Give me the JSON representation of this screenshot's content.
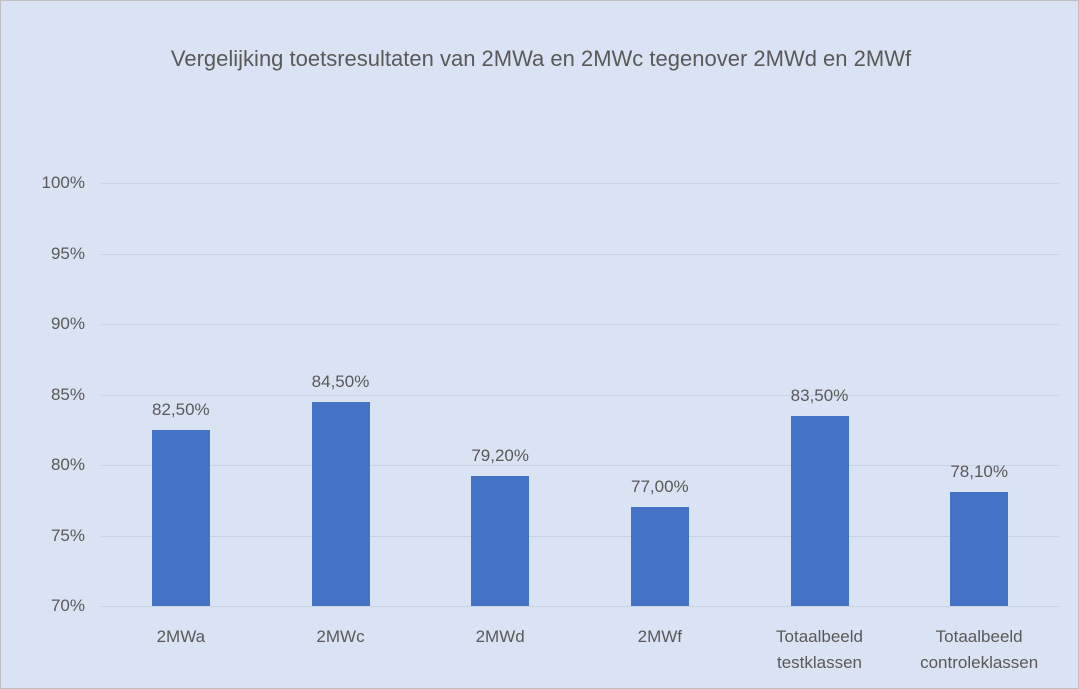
{
  "chart_data": {
    "type": "bar",
    "title": "Vergelijking toetsresultaten van 2MWa en 2MWc tegenover 2MWd en 2MWf",
    "categories": [
      "2MWa",
      "2MWc",
      "2MWd",
      "2MWf",
      "Totaalbeeld testklassen",
      "Totaalbeeld controleklassen"
    ],
    "values": [
      82.5,
      84.5,
      79.2,
      77.0,
      83.5,
      78.1
    ],
    "value_labels": [
      "82,50%",
      "84,50%",
      "79,20%",
      "77,00%",
      "83,50%",
      "78,10%"
    ],
    "color": "#4472c4",
    "ylim": [
      70,
      100
    ],
    "yticks": [
      {
        "value": 70,
        "label": "70%"
      },
      {
        "value": 75,
        "label": "75%"
      },
      {
        "value": 80,
        "label": "80%"
      },
      {
        "value": 85,
        "label": "85%"
      },
      {
        "value": 90,
        "label": "90%"
      },
      {
        "value": 95,
        "label": "95%"
      },
      {
        "value": 100,
        "label": "100%"
      }
    ],
    "grid": true
  }
}
